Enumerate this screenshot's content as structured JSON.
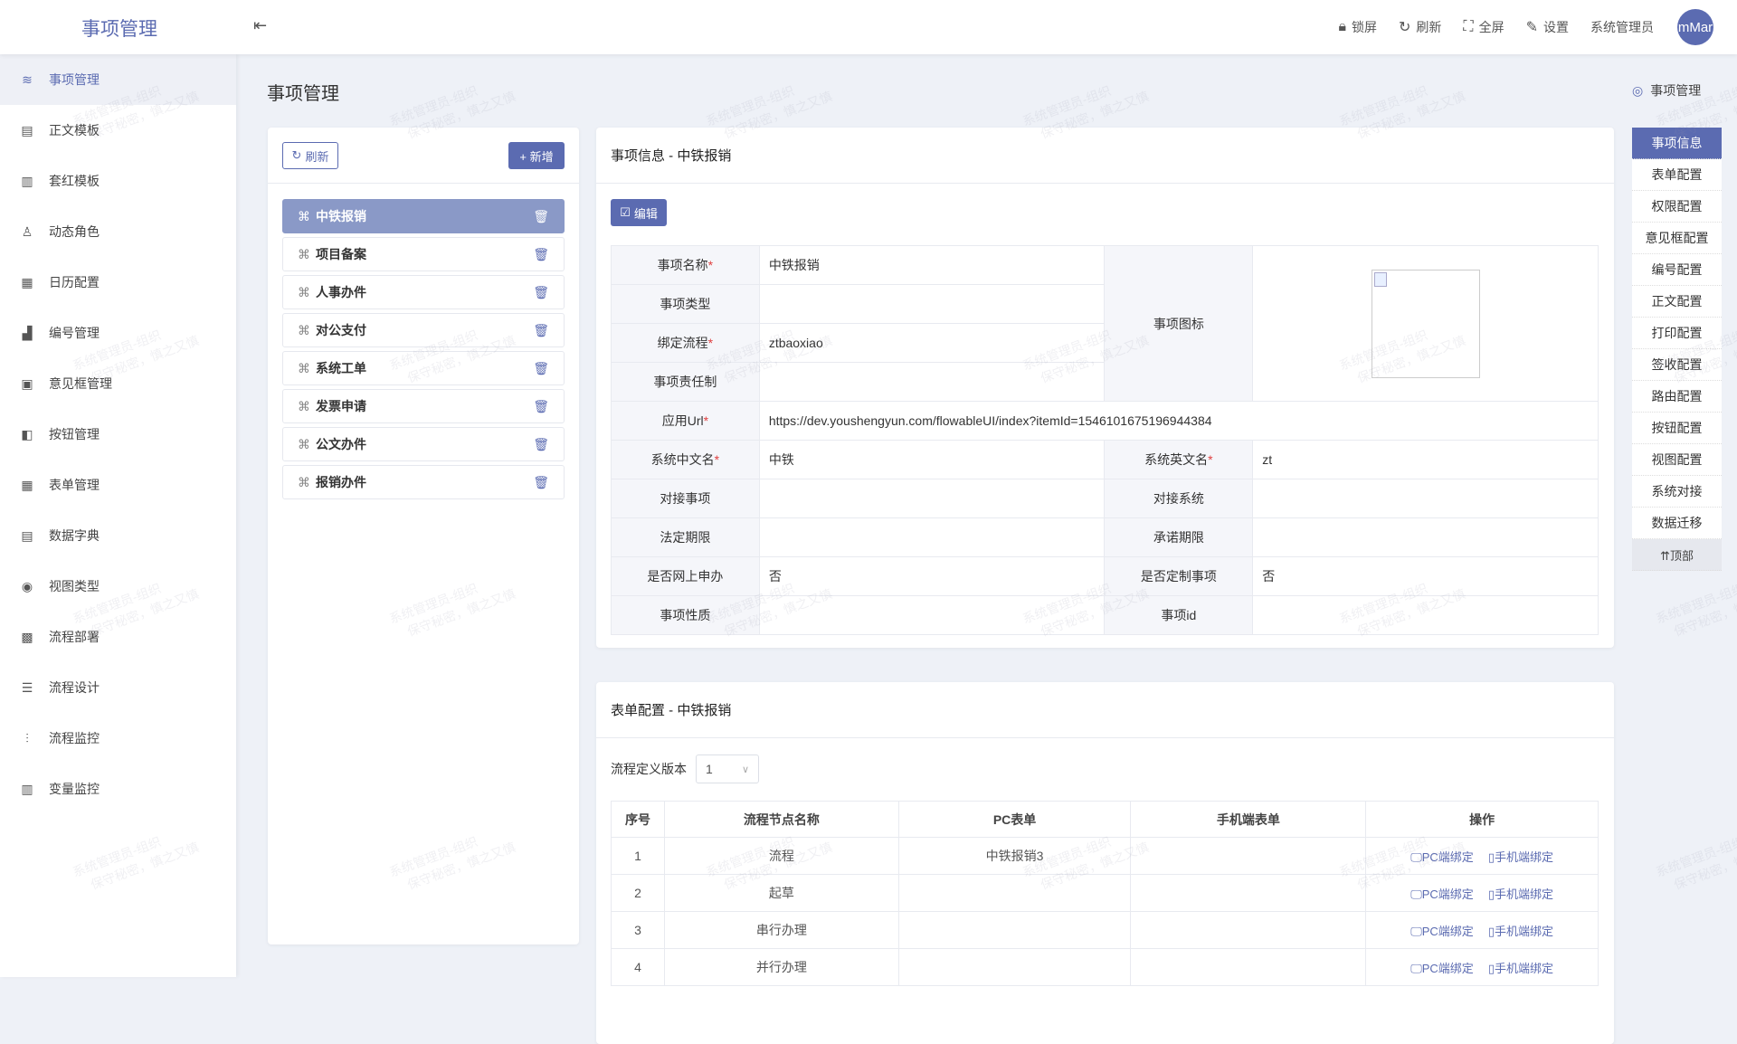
{
  "header": {
    "logo": "事项管理",
    "tools": [
      {
        "icon": "lock-icon",
        "label": "锁屏"
      },
      {
        "icon": "refresh-icon",
        "label": "刷新"
      },
      {
        "icon": "fullscreen-icon",
        "label": "全屏"
      },
      {
        "icon": "settings-icon",
        "label": "设置"
      }
    ],
    "user": "系统管理员",
    "avatar": "mMar"
  },
  "sidebar": {
    "items": [
      {
        "icon": "database-icon",
        "label": "事项管理",
        "active": true
      },
      {
        "icon": "document-icon",
        "label": "正文模板"
      },
      {
        "icon": "template-icon",
        "label": "套红模板"
      },
      {
        "icon": "user-role-icon",
        "label": "动态角色"
      },
      {
        "icon": "calendar-icon",
        "label": "日历配置"
      },
      {
        "icon": "bar-chart-icon",
        "label": "编号管理"
      },
      {
        "icon": "comment-box-icon",
        "label": "意见框管理"
      },
      {
        "icon": "button-icon",
        "label": "按钮管理"
      },
      {
        "icon": "table-icon",
        "label": "表单管理"
      },
      {
        "icon": "dictionary-icon",
        "label": "数据字典"
      },
      {
        "icon": "eye-icon",
        "label": "视图类型"
      },
      {
        "icon": "deploy-icon",
        "label": "流程部署"
      },
      {
        "icon": "design-icon",
        "label": "流程设计"
      },
      {
        "icon": "monitor-icon",
        "label": "流程监控"
      },
      {
        "icon": "variable-icon",
        "label": "变量监控"
      }
    ]
  },
  "page": {
    "title": "事项管理",
    "breadcrumb": "事项管理"
  },
  "left_panel": {
    "refresh": "刷新",
    "add": "+ 新增",
    "items": [
      "中铁报销",
      "项目备案",
      "人事办件",
      "对公支付",
      "系统工单",
      "发票申请",
      "公文办件",
      "报销办件"
    ],
    "selected": 0
  },
  "info_card": {
    "title": "事项信息 - 中铁报销",
    "edit": "编辑",
    "labels": {
      "name": "事项名称",
      "type": "事项类型",
      "flow": "绑定流程",
      "resp": "事项责任制",
      "icon": "事项图标",
      "url": "应用Url",
      "cn": "系统中文名",
      "en": "系统英文名",
      "dock_item": "对接事项",
      "dock_sys": "对接系统",
      "legal": "法定期限",
      "promise": "承诺期限",
      "online": "是否网上申办",
      "custom": "是否定制事项",
      "nature": "事项性质",
      "id": "事项id"
    },
    "values": {
      "name": "中铁报销",
      "type": "",
      "flow": "ztbaoxiao",
      "resp": "",
      "url": "https://dev.youshengyun.com/flowableUI/index?itemId=1546101675196944384",
      "cn": "中铁",
      "en": "zt",
      "dock_item": "",
      "dock_sys": "",
      "legal": "",
      "promise": "",
      "online": "否",
      "custom": "否",
      "nature": "",
      "id": ""
    },
    "required_mark": "*"
  },
  "form_card": {
    "title": "表单配置 - 中铁报销",
    "version_label": "流程定义版本",
    "version": "1",
    "columns": [
      "序号",
      "流程节点名称",
      "PC表单",
      "手机端表单",
      "操作"
    ],
    "rows": [
      {
        "no": "1",
        "node": "流程",
        "pc": "中铁报销3",
        "mobile": ""
      },
      {
        "no": "2",
        "node": "起草",
        "pc": "",
        "mobile": ""
      },
      {
        "no": "3",
        "node": "串行办理",
        "pc": "",
        "mobile": ""
      },
      {
        "no": "4",
        "node": "并行办理",
        "pc": "",
        "mobile": ""
      }
    ],
    "actions": {
      "pc": "PC端绑定",
      "mobile": "手机端绑定"
    }
  },
  "right_nav": {
    "items": [
      "事项信息",
      "表单配置",
      "权限配置",
      "意见框配置",
      "编号配置",
      "正文配置",
      "打印配置",
      "签收配置",
      "路由配置",
      "按钮配置",
      "视图配置",
      "系统对接",
      "数据迁移"
    ],
    "top": "⇈顶部",
    "active": 0
  },
  "watermark": {
    "line1": "系统管理员-组织",
    "line2": "保守秘密，慎之又慎"
  },
  "colors": {
    "primary": "#5b6bb1",
    "selected_item": "#8a99c7",
    "background": "#eef1f7",
    "required": "#e04040"
  }
}
